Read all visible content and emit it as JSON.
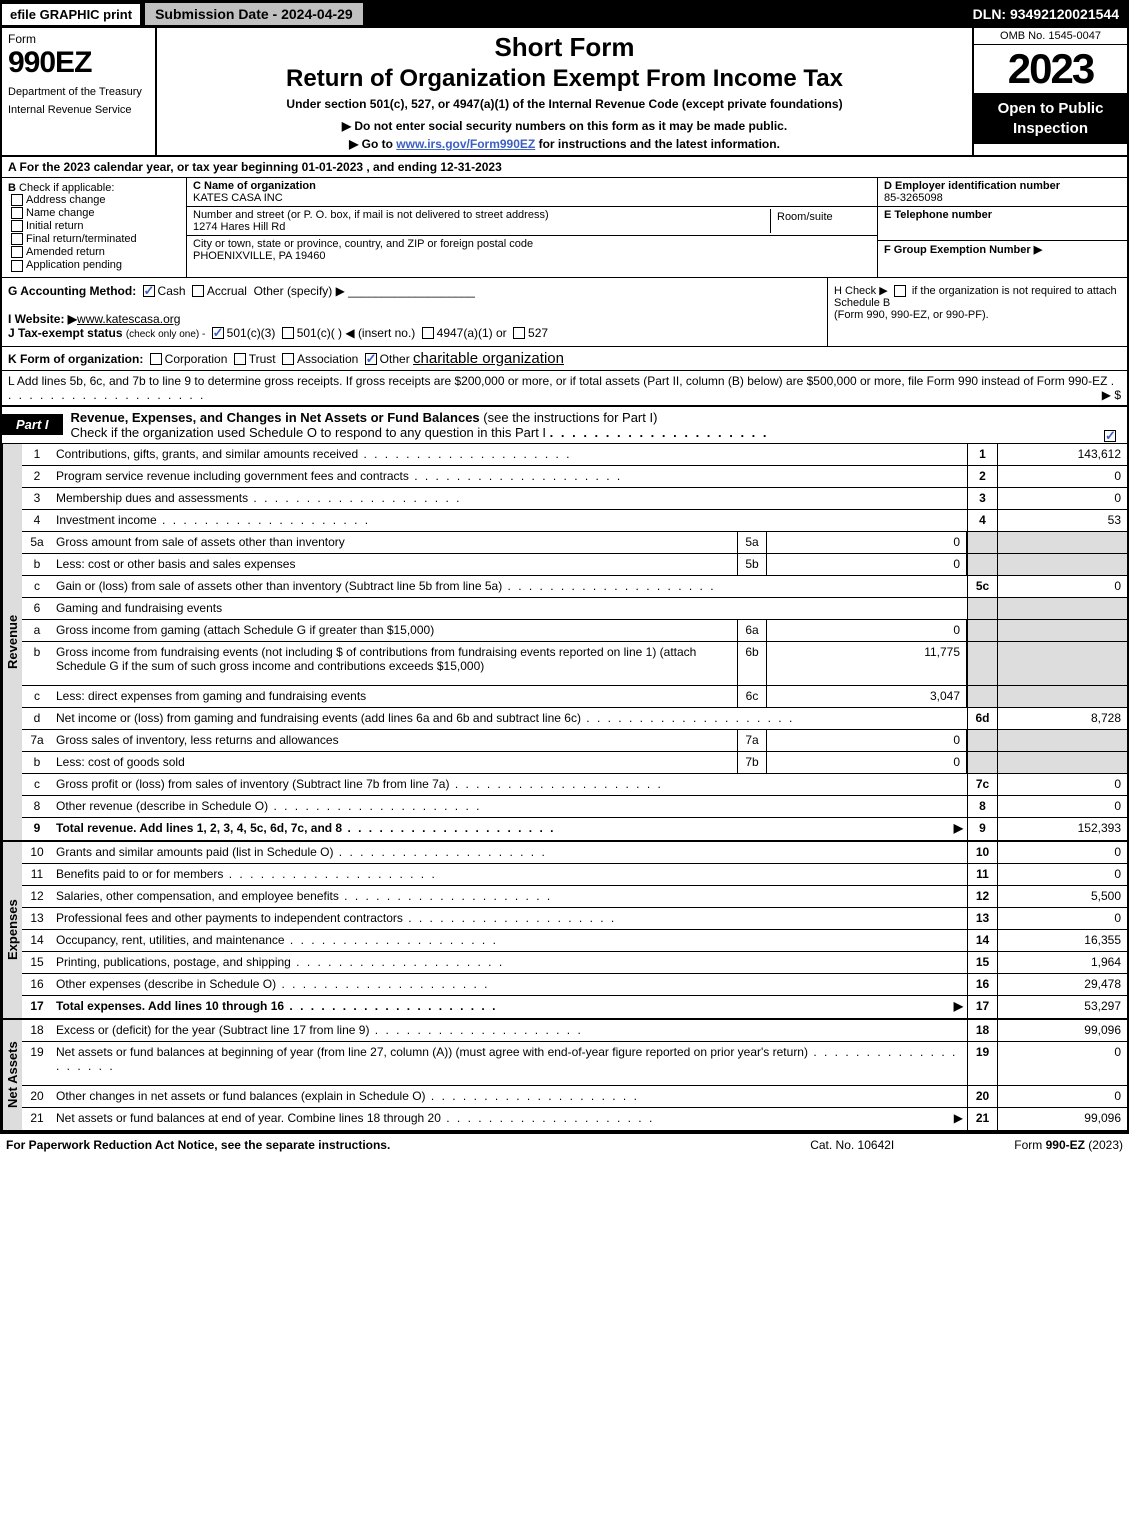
{
  "topbar": {
    "efile": "efile GRAPHIC print",
    "submission": "Submission Date - 2024-04-29",
    "dln": "DLN: 93492120021544"
  },
  "header": {
    "form_label": "Form",
    "form_num": "990EZ",
    "dept1": "Department of the Treasury",
    "dept2": "Internal Revenue Service",
    "short": "Short Form",
    "return_title": "Return of Organization Exempt From Income Tax",
    "under": "Under section 501(c), 527, or 4947(a)(1) of the Internal Revenue Code (except private foundations)",
    "note": "▶ Do not enter social security numbers on this form as it may be made public.",
    "goto_pre": "▶ Go to ",
    "goto_link": "www.irs.gov/Form990EZ",
    "goto_post": " for instructions and the latest information.",
    "omb": "OMB No. 1545-0047",
    "year": "2023",
    "open": "Open to Public Inspection"
  },
  "lineA": "A  For the 2023 calendar year, or tax year beginning 01-01-2023 , and ending 12-31-2023",
  "colB": {
    "title": "B",
    "check_if": "Check if applicable:",
    "opts": [
      "Address change",
      "Name change",
      "Initial return",
      "Final return/terminated",
      "Amended return",
      "Application pending"
    ]
  },
  "colC": {
    "name_lbl": "C Name of organization",
    "name_val": "KATES CASA INC",
    "addr_lbl": "Number and street (or P. O. box, if mail is not delivered to street address)",
    "addr_val": "1274 Hares Hill Rd",
    "room_lbl": "Room/suite",
    "city_lbl": "City or town, state or province, country, and ZIP or foreign postal code",
    "city_val": "PHOENIXVILLE, PA  19460"
  },
  "colD": {
    "ein_lbl": "D Employer identification number",
    "ein_val": "85-3265098",
    "tel_lbl": "E Telephone number",
    "tel_val": "",
    "grp_lbl": "F Group Exemption Number  ▶",
    "grp_val": ""
  },
  "lineG": {
    "label": "G Accounting Method:",
    "cash": "Cash",
    "accrual": "Accrual",
    "other": "Other (specify) ▶",
    "cash_checked": true
  },
  "lineH": {
    "text1": "H  Check ▶",
    "text2": "if the organization is not required to attach Schedule B",
    "text3": "(Form 990, 990-EZ, or 990-PF)."
  },
  "lineI": {
    "label": "I Website: ▶",
    "val": "www.katescasa.org"
  },
  "lineJ": {
    "label": "J Tax-exempt status",
    "sub": "(check only one) -",
    "o1": "501(c)(3)",
    "o2": "501(c)(  ) ◀ (insert no.)",
    "o3": "4947(a)(1) or",
    "o4": "527",
    "o1_checked": true
  },
  "lineK": {
    "label": "K Form of organization:",
    "corp": "Corporation",
    "trust": "Trust",
    "assoc": "Association",
    "other_lbl": "Other",
    "other_val": "charitable organization",
    "other_checked": true
  },
  "lineL": {
    "text": "L Add lines 5b, 6c, and 7b to line 9 to determine gross receipts. If gross receipts are $200,000 or more, or if total assets (Part II, column (B) below) are $500,000 or more, file Form 990 instead of Form 990-EZ",
    "arrow": "▶ $"
  },
  "part1": {
    "tab": "Part I",
    "title": "Revenue, Expenses, and Changes in Net Assets or Fund Balances",
    "title_sub": "(see the instructions for Part I)",
    "check_line": "Check if the organization used Schedule O to respond to any question in this Part I",
    "check_checked": true
  },
  "sections": {
    "revenue": {
      "label": "Revenue",
      "rows": [
        {
          "ln": "1",
          "desc": "Contributions, gifts, grants, and similar amounts received",
          "num": "1",
          "val": "143,612"
        },
        {
          "ln": "2",
          "desc": "Program service revenue including government fees and contracts",
          "num": "2",
          "val": "0"
        },
        {
          "ln": "3",
          "desc": "Membership dues and assessments",
          "num": "3",
          "val": "0"
        },
        {
          "ln": "4",
          "desc": "Investment income",
          "num": "4",
          "val": "53"
        },
        {
          "ln": "5a",
          "desc": "Gross amount from sale of assets other than inventory",
          "mini_ln": "5a",
          "mini_val": "0",
          "grey": true
        },
        {
          "ln": "b",
          "desc": "Less: cost or other basis and sales expenses",
          "mini_ln": "5b",
          "mini_val": "0",
          "grey": true
        },
        {
          "ln": "c",
          "desc": "Gain or (loss) from sale of assets other than inventory (Subtract line 5b from line 5a)",
          "num": "5c",
          "val": "0"
        },
        {
          "ln": "6",
          "desc": "Gaming and fundraising events",
          "grey": true,
          "nobox": true
        },
        {
          "ln": "a",
          "desc": "Gross income from gaming (attach Schedule G if greater than $15,000)",
          "mini_ln": "6a",
          "mini_val": "0",
          "grey": true
        },
        {
          "ln": "b",
          "desc": "Gross income from fundraising events (not including $                    of contributions from fundraising events reported on line 1) (attach Schedule G if the sum of such gross income and contributions exceeds $15,000)",
          "mini_ln": "6b",
          "mini_val": "11,775",
          "grey": true,
          "tall": true
        },
        {
          "ln": "c",
          "desc": "Less: direct expenses from gaming and fundraising events",
          "mini_ln": "6c",
          "mini_val": "3,047",
          "grey": true
        },
        {
          "ln": "d",
          "desc": "Net income or (loss) from gaming and fundraising events (add lines 6a and 6b and subtract line 6c)",
          "num": "6d",
          "val": "8,728"
        },
        {
          "ln": "7a",
          "desc": "Gross sales of inventory, less returns and allowances",
          "mini_ln": "7a",
          "mini_val": "0",
          "grey": true
        },
        {
          "ln": "b",
          "desc": "Less: cost of goods sold",
          "mini_ln": "7b",
          "mini_val": "0",
          "grey": true
        },
        {
          "ln": "c",
          "desc": "Gross profit or (loss) from sales of inventory (Subtract line 7b from line 7a)",
          "num": "7c",
          "val": "0"
        },
        {
          "ln": "8",
          "desc": "Other revenue (describe in Schedule O)",
          "num": "8",
          "val": "0"
        },
        {
          "ln": "9",
          "desc": "Total revenue. Add lines 1, 2, 3, 4, 5c, 6d, 7c, and 8",
          "num": "9",
          "val": "152,393",
          "bold": true,
          "arrow": true
        }
      ]
    },
    "expenses": {
      "label": "Expenses",
      "rows": [
        {
          "ln": "10",
          "desc": "Grants and similar amounts paid (list in Schedule O)",
          "num": "10",
          "val": "0"
        },
        {
          "ln": "11",
          "desc": "Benefits paid to or for members",
          "num": "11",
          "val": "0"
        },
        {
          "ln": "12",
          "desc": "Salaries, other compensation, and employee benefits",
          "num": "12",
          "val": "5,500"
        },
        {
          "ln": "13",
          "desc": "Professional fees and other payments to independent contractors",
          "num": "13",
          "val": "0"
        },
        {
          "ln": "14",
          "desc": "Occupancy, rent, utilities, and maintenance",
          "num": "14",
          "val": "16,355"
        },
        {
          "ln": "15",
          "desc": "Printing, publications, postage, and shipping",
          "num": "15",
          "val": "1,964"
        },
        {
          "ln": "16",
          "desc": "Other expenses (describe in Schedule O)",
          "num": "16",
          "val": "29,478"
        },
        {
          "ln": "17",
          "desc": "Total expenses. Add lines 10 through 16",
          "num": "17",
          "val": "53,297",
          "bold": true,
          "arrow": true
        }
      ]
    },
    "netassets": {
      "label": "Net Assets",
      "rows": [
        {
          "ln": "18",
          "desc": "Excess or (deficit) for the year (Subtract line 17 from line 9)",
          "num": "18",
          "val": "99,096"
        },
        {
          "ln": "19",
          "desc": "Net assets or fund balances at beginning of year (from line 27, column (A)) (must agree with end-of-year figure reported on prior year's return)",
          "num": "19",
          "val": "0",
          "tall": true
        },
        {
          "ln": "20",
          "desc": "Other changes in net assets or fund balances (explain in Schedule O)",
          "num": "20",
          "val": "0"
        },
        {
          "ln": "21",
          "desc": "Net assets or fund balances at end of year. Combine lines 18 through 20",
          "num": "21",
          "val": "99,096",
          "arrow": true
        }
      ]
    }
  },
  "footer": {
    "left": "For Paperwork Reduction Act Notice, see the separate instructions.",
    "cat": "Cat. No. 10642I",
    "right_pre": "Form ",
    "right_bold": "990-EZ",
    "right_post": " (2023)"
  },
  "colors": {
    "black": "#000000",
    "grey": "#dddddd",
    "link": "#3b5fc4",
    "topbar_grey": "#c0c0c0"
  }
}
